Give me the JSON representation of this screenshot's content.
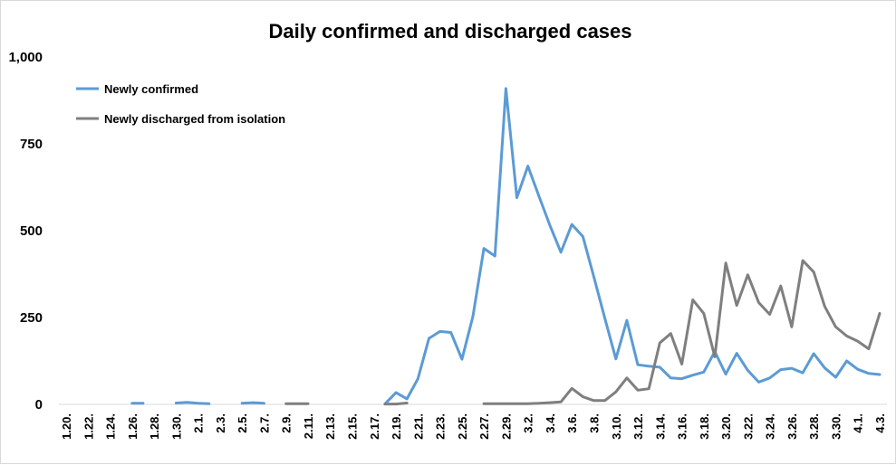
{
  "chart_data": {
    "type": "line",
    "title": "Daily confirmed and discharged cases",
    "xlabel": "",
    "ylabel": "",
    "ylim": [
      0,
      1000
    ],
    "yticks": [
      "0",
      "250",
      "500",
      "750",
      "1,000"
    ],
    "ytick_values": [
      0,
      250,
      500,
      750,
      1000
    ],
    "grid": false,
    "legend_position": "top-left",
    "x": [
      "1.20.",
      "1.21.",
      "1.22.",
      "1.23.",
      "1.24.",
      "1.25.",
      "1.26.",
      "1.27.",
      "1.28.",
      "1.29.",
      "1.30.",
      "1.31.",
      "2.1.",
      "2.2.",
      "2.3.",
      "2.4.",
      "2.5.",
      "2.6.",
      "2.7.",
      "2.8.",
      "2.9.",
      "2.10.",
      "2.11.",
      "2.12.",
      "2.13.",
      "2.14.",
      "2.15.",
      "2.16.",
      "2.17.",
      "2.18.",
      "2.19.",
      "2.20.",
      "2.21.",
      "2.22.",
      "2.23.",
      "2.24.",
      "2.25.",
      "2.26.",
      "2.27.",
      "2.28.",
      "2.29.",
      "3.1.",
      "3.2.",
      "3.3.",
      "3.4.",
      "3.5.",
      "3.6.",
      "3.7.",
      "3.8.",
      "3.9.",
      "3.10.",
      "3.11.",
      "3.12.",
      "3.13.",
      "3.14.",
      "3.15.",
      "3.16.",
      "3.17.",
      "3.18.",
      "3.19.",
      "3.20.",
      "3.21.",
      "3.22.",
      "3.23.",
      "3.24.",
      "3.25.",
      "3.26.",
      "3.27.",
      "3.28.",
      "3.29.",
      "3.30.",
      "3.31.",
      "4.1.",
      "4.2.",
      "4.3."
    ],
    "x_tick_labels": [
      "1.20.",
      "1.22.",
      "1.24.",
      "1.26.",
      "1.28.",
      "1.30.",
      "2.1.",
      "2.3.",
      "2.5.",
      "2.7.",
      "2.9.",
      "2.11.",
      "2.13.",
      "2.15.",
      "2.17.",
      "2.19.",
      "2.21.",
      "2.23.",
      "2.25.",
      "2.27.",
      "2.29.",
      "3.2.",
      "3.4.",
      "3.6.",
      "3.8.",
      "3.10.",
      "3.12.",
      "3.14.",
      "3.16.",
      "3.18.",
      "3.20.",
      "3.22.",
      "3.24.",
      "3.26.",
      "3.28.",
      "3.30.",
      "4.1.",
      "4.3."
    ],
    "series": [
      {
        "name": "Newly confirmed",
        "color": "#5b9bd5",
        "values": [
          null,
          null,
          null,
          null,
          null,
          null,
          3,
          3,
          null,
          null,
          4,
          6,
          3,
          2,
          null,
          null,
          3,
          5,
          3,
          null,
          null,
          null,
          null,
          null,
          null,
          null,
          null,
          null,
          null,
          1,
          34,
          16,
          74,
          190,
          210,
          207,
          130,
          253,
          449,
          427,
          909,
          595,
          686,
          600,
          516,
          438,
          518,
          483,
          367,
          248,
          131,
          242,
          114,
          110,
          107,
          76,
          74,
          84,
          93,
          152,
          87,
          147,
          98,
          64,
          76,
          100,
          104,
          91,
          146,
          105,
          78,
          125,
          101,
          89,
          86
        ]
      },
      {
        "name": "Newly discharged from isolation",
        "color": "#7f7f7f",
        "values": [
          null,
          null,
          null,
          null,
          null,
          null,
          null,
          null,
          null,
          null,
          null,
          null,
          null,
          null,
          null,
          null,
          null,
          null,
          null,
          null,
          2,
          2,
          2,
          null,
          null,
          null,
          null,
          null,
          null,
          1,
          1,
          4,
          null,
          null,
          null,
          null,
          null,
          null,
          2,
          2,
          2,
          2,
          2,
          3,
          5,
          7,
          46,
          22,
          11,
          11,
          36,
          76,
          41,
          45,
          177,
          204,
          116,
          301,
          262,
          137,
          407,
          285,
          373,
          293,
          259,
          341,
          223,
          414,
          381,
          282,
          223,
          197,
          182,
          160,
          262
        ]
      }
    ]
  }
}
